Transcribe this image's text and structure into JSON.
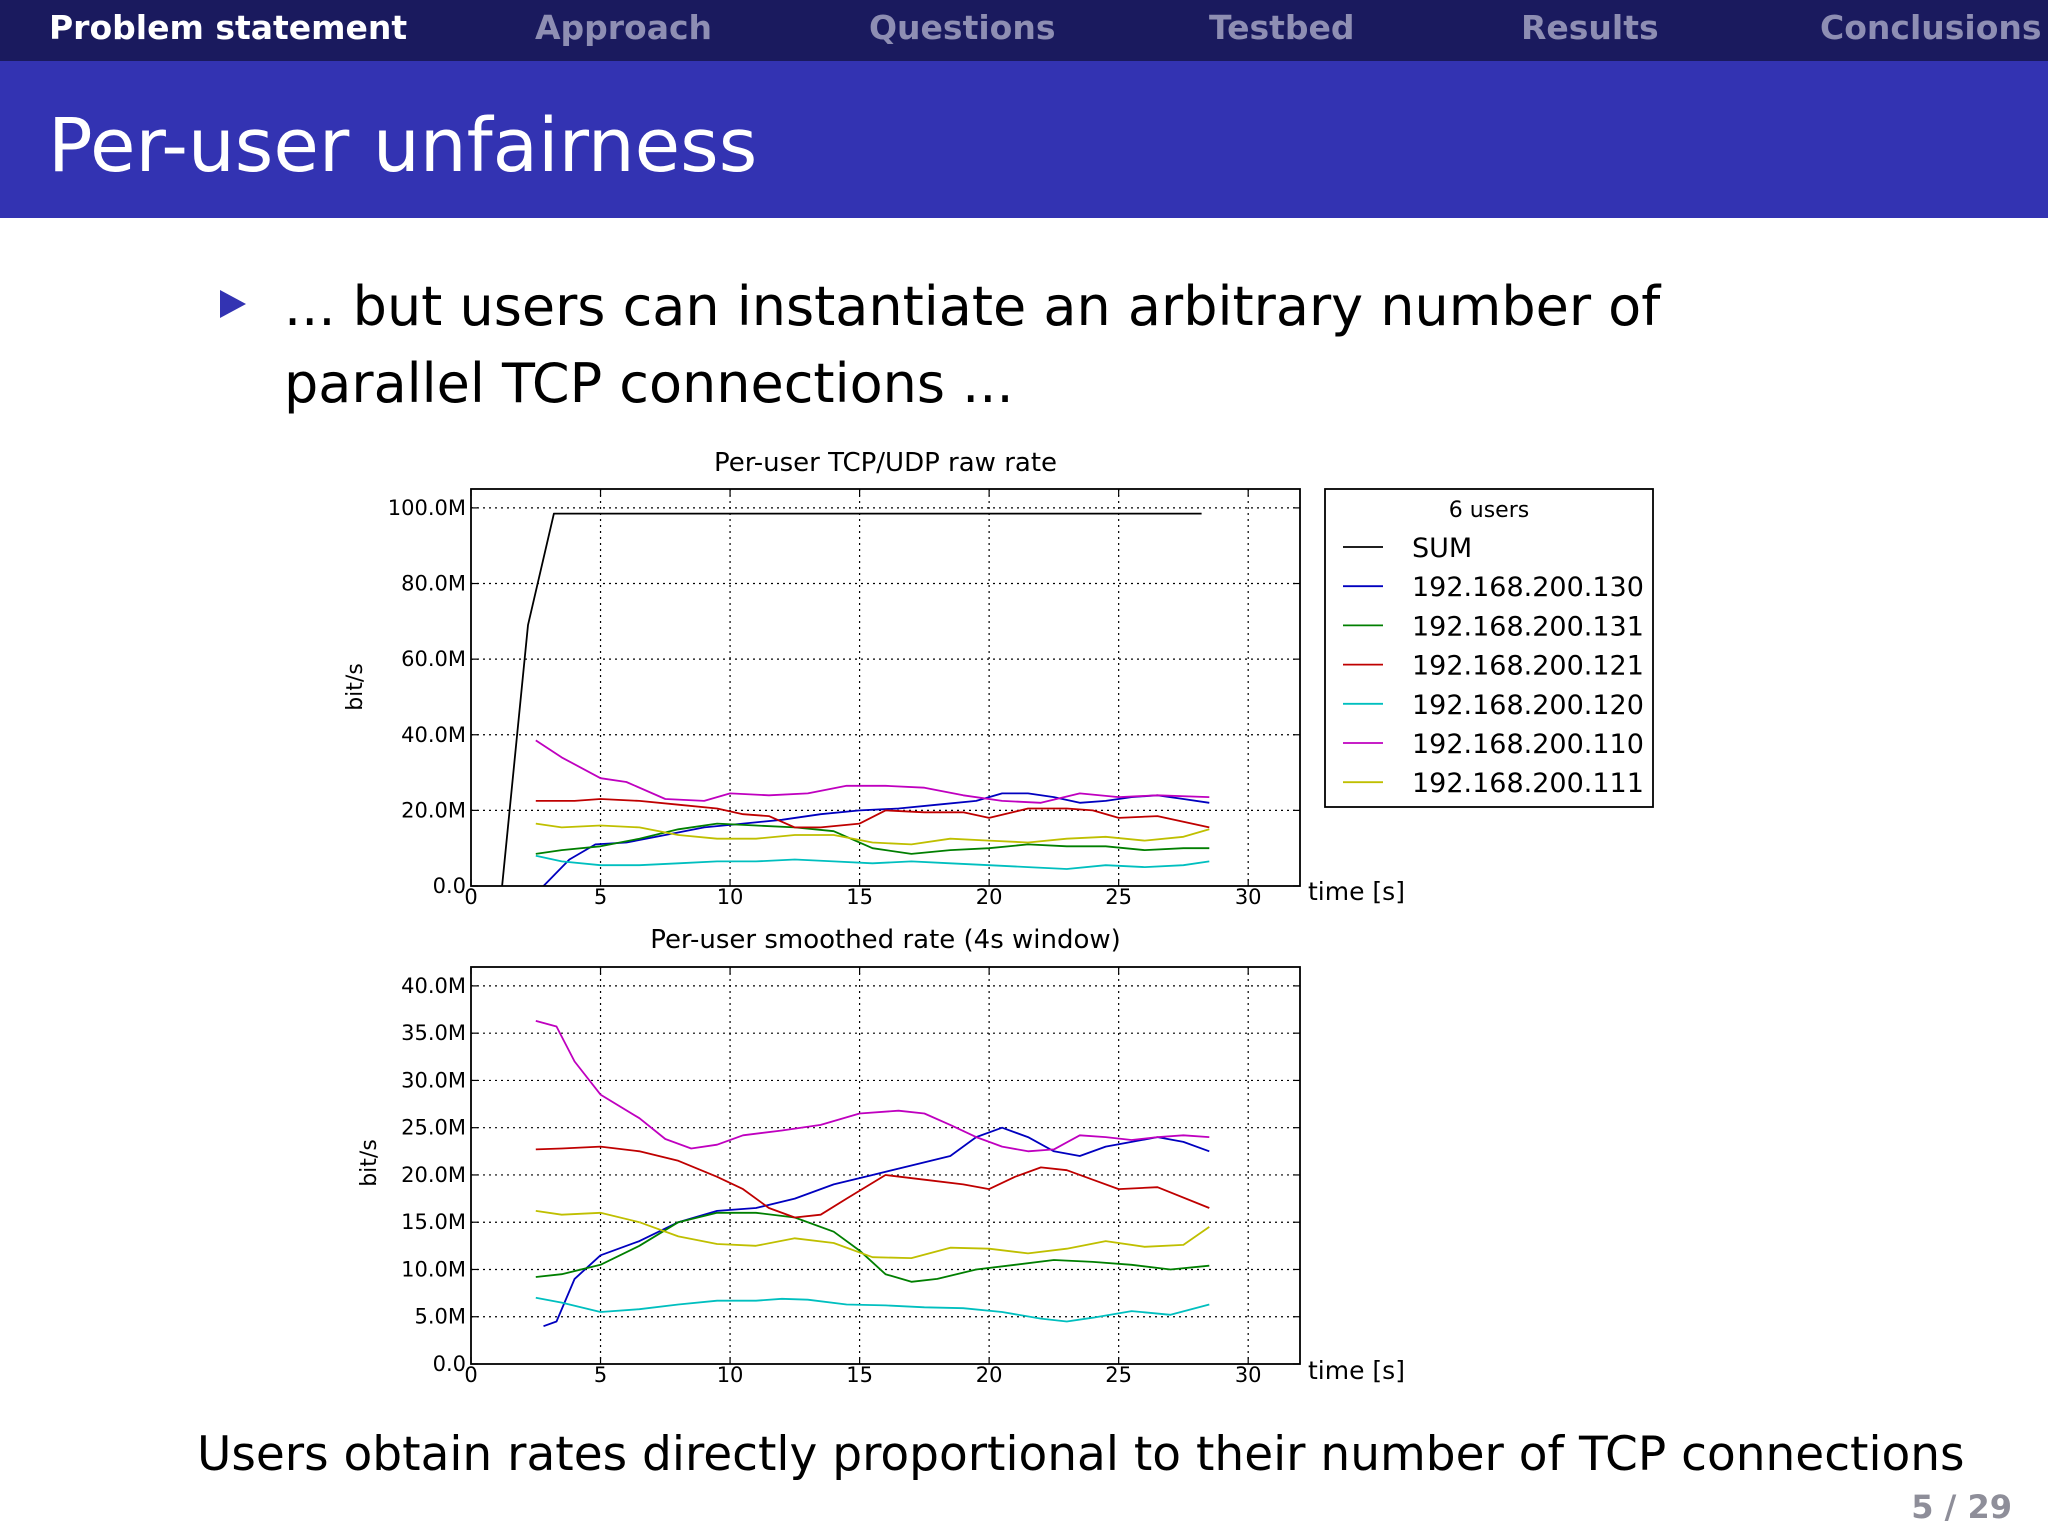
{
  "nav": {
    "items": [
      "Problem statement",
      "Approach",
      "Questions",
      "Testbed",
      "Results",
      "Conclusions"
    ],
    "active": 0
  },
  "slide": {
    "title": "Per-user unfairness",
    "bullet": "... but users can instantiate an arbitrary number of parallel TCP connections ...",
    "bottom_text": "Users obtain rates directly proportional to their number of TCP connections",
    "page_number": "5 / 29"
  },
  "colors": {
    "nav_bg": "#1a1a5e",
    "title_bg": "#3333b2",
    "nav_active": "#ffffff",
    "nav_inactive": "#8e8eb3"
  },
  "chart_data": [
    {
      "type": "line",
      "title": "Per-user TCP/UDP raw rate",
      "xlabel": "time [s]",
      "ylabel": "bit/s",
      "xlim": [
        0,
        32
      ],
      "ylim": [
        0,
        105000000
      ],
      "xticks": [
        0,
        5,
        10,
        15,
        20,
        25,
        30
      ],
      "xtick_labels": [
        "0",
        "5",
        "10",
        "15",
        "20",
        "25",
        "30"
      ],
      "yticks": [
        0,
        20000000,
        40000000,
        60000000,
        80000000,
        100000000
      ],
      "ytick_labels": [
        "0.0",
        "20.0M",
        "40.0M",
        "60.0M",
        "80.0M",
        "100.0M"
      ],
      "grid": true,
      "legend": {
        "title": "6 users",
        "placement": "outside-right",
        "entries": [
          "SUM",
          "192.168.200.130",
          "192.168.200.131",
          "192.168.200.121",
          "192.168.200.120",
          "192.168.200.110",
          "192.168.200.111"
        ]
      },
      "series": [
        {
          "name": "SUM",
          "color": "#000000",
          "x": [
            1.2,
            2.2,
            3.2,
            5,
            10,
            15,
            20,
            25,
            28.2
          ],
          "y": [
            0,
            69000000,
            98500000,
            98500000,
            98500000,
            98500000,
            98500000,
            98500000,
            98500000
          ]
        },
        {
          "name": "192.168.200.130",
          "color": "#0000bf",
          "x": [
            2.8,
            3.8,
            4.8,
            6,
            7.5,
            9,
            10.5,
            12,
            13.5,
            15,
            16.5,
            18,
            19.5,
            20.5,
            21.5,
            22.5,
            23.5,
            24.5,
            25.5,
            26.5,
            27.5,
            28.5
          ],
          "y": [
            0,
            7000000,
            11000000,
            11500000,
            13500000,
            15500000,
            16500000,
            17500000,
            19000000,
            20000000,
            20500000,
            21500000,
            22500000,
            24500000,
            24500000,
            23500000,
            22000000,
            22500000,
            23500000,
            24000000,
            23000000,
            22000000
          ]
        },
        {
          "name": "192.168.200.131",
          "color": "#007f00",
          "x": [
            2.5,
            3.5,
            5,
            6.5,
            8,
            9.5,
            11,
            12.5,
            14,
            15.5,
            17,
            18.5,
            20,
            21.5,
            23,
            24.5,
            26,
            27.5,
            28.5
          ],
          "y": [
            8500000,
            9500000,
            10500000,
            12500000,
            15000000,
            16500000,
            16000000,
            15500000,
            14500000,
            10000000,
            8500000,
            9500000,
            10000000,
            11000000,
            10500000,
            10500000,
            9500000,
            10000000,
            10000000
          ]
        },
        {
          "name": "192.168.200.121",
          "color": "#bf0000",
          "x": [
            2.5,
            4,
            5,
            6.5,
            8,
            9.5,
            10.5,
            11.5,
            12.5,
            13.5,
            15,
            16,
            17.5,
            19,
            20,
            21.5,
            23,
            24,
            25,
            26.5,
            28.5
          ],
          "y": [
            22500000,
            22500000,
            23000000,
            22500000,
            21500000,
            20500000,
            19000000,
            18500000,
            15500000,
            15500000,
            16500000,
            20000000,
            19500000,
            19500000,
            18000000,
            20500000,
            20500000,
            20000000,
            18000000,
            18500000,
            15500000
          ]
        },
        {
          "name": "192.168.200.120",
          "color": "#00bfbf",
          "x": [
            2.5,
            3.5,
            5,
            6.5,
            8,
            9.5,
            11,
            12.5,
            14,
            15.5,
            17,
            18.5,
            20,
            21.5,
            23,
            24.5,
            26,
            27.5,
            28.5
          ],
          "y": [
            8000000,
            6500000,
            5500000,
            5500000,
            6000000,
            6500000,
            6500000,
            7000000,
            6500000,
            6000000,
            6500000,
            6000000,
            5500000,
            5000000,
            4500000,
            5500000,
            5000000,
            5500000,
            6500000
          ]
        },
        {
          "name": "192.168.200.110",
          "color": "#bf00bf",
          "x": [
            2.5,
            3.5,
            5,
            6,
            7.5,
            9,
            10,
            11.5,
            13,
            14.5,
            16,
            17.5,
            19,
            20.5,
            22,
            23.5,
            25,
            26.5,
            28.5
          ],
          "y": [
            38500000,
            34000000,
            28500000,
            27500000,
            23000000,
            22500000,
            24500000,
            24000000,
            24500000,
            26500000,
            26500000,
            26000000,
            24000000,
            22500000,
            22000000,
            24500000,
            23500000,
            24000000,
            23500000
          ]
        },
        {
          "name": "192.168.200.111",
          "color": "#bfbf00",
          "x": [
            2.5,
            3.5,
            5,
            6.5,
            8,
            9.5,
            11,
            12.5,
            14,
            15.5,
            17,
            18.5,
            20,
            21.5,
            23,
            24.5,
            26,
            27.5,
            28.5
          ],
          "y": [
            16500000,
            15500000,
            16000000,
            15500000,
            13500000,
            12500000,
            12500000,
            13500000,
            13500000,
            11500000,
            11000000,
            12500000,
            12000000,
            11500000,
            12500000,
            13000000,
            12000000,
            13000000,
            15000000
          ]
        }
      ]
    },
    {
      "type": "line",
      "title": "Per-user smoothed rate (4s window)",
      "xlabel": "time [s]",
      "ylabel": "bit/s",
      "xlim": [
        0,
        32
      ],
      "ylim": [
        0,
        42000000
      ],
      "xticks": [
        0,
        5,
        10,
        15,
        20,
        25,
        30
      ],
      "xtick_labels": [
        "0",
        "5",
        "10",
        "15",
        "20",
        "25",
        "30"
      ],
      "yticks": [
        0,
        5000000,
        10000000,
        15000000,
        20000000,
        25000000,
        30000000,
        35000000,
        40000000
      ],
      "ytick_labels": [
        "0.0",
        "5.0M",
        "10.0M",
        "15.0M",
        "20.0M",
        "25.0M",
        "30.0M",
        "35.0M",
        "40.0M"
      ],
      "grid": true,
      "series": [
        {
          "name": "192.168.200.130",
          "color": "#0000bf",
          "x": [
            2.8,
            3.3,
            4,
            5,
            6.5,
            8,
            9.5,
            11,
            12.5,
            14,
            15.5,
            17,
            18.5,
            19.5,
            20.5,
            21.5,
            22.5,
            23.5,
            24.5,
            25.5,
            26.5,
            27.5,
            28.5
          ],
          "y": [
            4000000,
            4500000,
            9000000,
            11500000,
            13000000,
            15000000,
            16200000,
            16500000,
            17500000,
            19000000,
            20000000,
            21000000,
            22000000,
            24000000,
            25000000,
            24000000,
            22500000,
            22000000,
            23000000,
            23500000,
            24000000,
            23500000,
            22500000
          ]
        },
        {
          "name": "192.168.200.131",
          "color": "#007f00",
          "x": [
            2.5,
            3.5,
            5,
            6.5,
            8,
            9.5,
            11,
            12.5,
            14,
            15,
            16,
            17,
            18,
            19.5,
            21,
            22.5,
            24,
            25.5,
            27,
            28.5
          ],
          "y": [
            9200000,
            9500000,
            10500000,
            12500000,
            15000000,
            16000000,
            16000000,
            15500000,
            14000000,
            12000000,
            9500000,
            8700000,
            9000000,
            10000000,
            10500000,
            11000000,
            10800000,
            10500000,
            10000000,
            10400000
          ]
        },
        {
          "name": "192.168.200.121",
          "color": "#bf0000",
          "x": [
            2.5,
            3.5,
            5,
            6.5,
            8,
            9.5,
            10.5,
            11.5,
            12.5,
            13.5,
            14.5,
            16,
            17.5,
            19,
            20,
            21,
            22,
            23,
            24,
            25,
            26.5,
            28.5
          ],
          "y": [
            22700000,
            22800000,
            23000000,
            22500000,
            21500000,
            19800000,
            18500000,
            16500000,
            15500000,
            15800000,
            17500000,
            20000000,
            19500000,
            19000000,
            18500000,
            19800000,
            20800000,
            20500000,
            19500000,
            18500000,
            18700000,
            16500000
          ]
        },
        {
          "name": "192.168.200.120",
          "color": "#00bfbf",
          "x": [
            2.5,
            3.5,
            5,
            6.5,
            8,
            9.5,
            11,
            12,
            13,
            14.5,
            16,
            17.5,
            19,
            20.5,
            22,
            23,
            24,
            25.5,
            27,
            28.5
          ],
          "y": [
            7000000,
            6500000,
            5500000,
            5800000,
            6300000,
            6700000,
            6700000,
            6900000,
            6800000,
            6300000,
            6200000,
            6000000,
            5900000,
            5500000,
            4800000,
            4500000,
            4900000,
            5600000,
            5200000,
            6300000
          ]
        },
        {
          "name": "192.168.200.110",
          "color": "#bf00bf",
          "x": [
            2.5,
            3.3,
            4,
            5,
            6.5,
            7.5,
            8.5,
            9.5,
            10.5,
            12,
            13.5,
            15,
            16.5,
            17.5,
            18.5,
            19.5,
            20.5,
            21.5,
            22.5,
            23.5,
            24.5,
            25.5,
            26.5,
            27.5,
            28.5
          ],
          "y": [
            36300000,
            35700000,
            32000000,
            28500000,
            26000000,
            23800000,
            22800000,
            23200000,
            24200000,
            24700000,
            25300000,
            26500000,
            26800000,
            26500000,
            25300000,
            24000000,
            23000000,
            22500000,
            22700000,
            24200000,
            24000000,
            23700000,
            24000000,
            24200000,
            24000000
          ]
        },
        {
          "name": "192.168.200.111",
          "color": "#bfbf00",
          "x": [
            2.5,
            3.5,
            5,
            6.5,
            8,
            9.5,
            11,
            12.5,
            14,
            15.5,
            17,
            18.5,
            20,
            21.5,
            23,
            24.5,
            26,
            27.5,
            28.5
          ],
          "y": [
            16200000,
            15800000,
            16000000,
            15000000,
            13500000,
            12700000,
            12500000,
            13300000,
            12800000,
            11300000,
            11200000,
            12300000,
            12200000,
            11700000,
            12200000,
            13000000,
            12400000,
            12600000,
            14500000
          ]
        }
      ]
    }
  ]
}
